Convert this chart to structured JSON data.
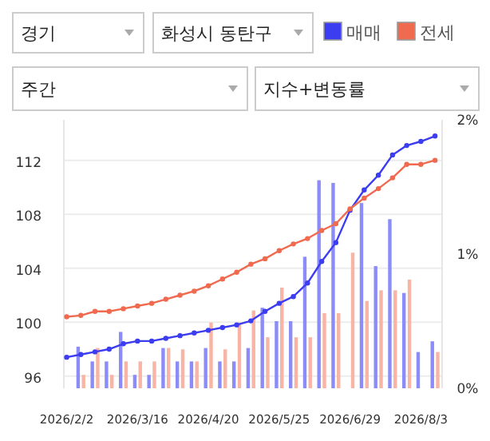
{
  "chart_data": {
    "type": "line",
    "annotations": [
      "경기",
      "화성시 동탄구",
      "주간",
      "지수+변동률"
    ],
    "categories": [
      "2026/2/2",
      null,
      null,
      null,
      null,
      "2026/3/16",
      null,
      null,
      null,
      null,
      "2026/4/20",
      null,
      null,
      null,
      null,
      "2026/5/25",
      null,
      null,
      null,
      null,
      "2026/6/29",
      null,
      null,
      null,
      null,
      "2026/8/3",
      null
    ],
    "series": [
      {
        "name": "매매",
        "color": "#3c3cf0",
        "values": [
          97.4,
          97.6,
          97.8,
          98.0,
          98.4,
          98.6,
          98.6,
          98.8,
          99.0,
          99.2,
          99.4,
          99.6,
          99.8,
          100.1,
          100.8,
          101.4,
          101.9,
          102.9,
          104.5,
          105.9,
          108.3,
          109.8,
          110.9,
          112.4,
          113.1,
          113.4,
          113.8
        ]
      },
      {
        "name": "전세",
        "color": "#f06a50",
        "values": [
          100.4,
          100.5,
          100.8,
          100.8,
          101.0,
          101.2,
          101.4,
          101.7,
          102.0,
          102.3,
          102.7,
          103.2,
          103.7,
          104.3,
          104.7,
          105.3,
          105.8,
          106.2,
          106.8,
          107.3,
          108.4,
          109.2,
          109.9,
          110.7,
          111.7,
          111.7,
          112.0
        ]
      },
      {
        "type": "bar",
        "axis": "y2",
        "color": "#8c8cf8",
        "values": [
          null,
          0.31,
          0.2,
          0.2,
          0.42,
          0.1,
          0.1,
          0.3,
          0.2,
          0.2,
          0.3,
          0.2,
          0.2,
          0.3,
          0.6,
          0.5,
          0.5,
          0.98,
          1.55,
          1.53,
          null,
          1.38,
          0.91,
          1.26,
          0.71,
          0.27,
          0.35
        ]
      },
      {
        "type": "bar",
        "axis": "y2",
        "color": "#f8b4a4",
        "values": [
          null,
          0.1,
          0.3,
          0.1,
          0.2,
          0.2,
          0.2,
          0.3,
          0.29,
          0.2,
          0.49,
          0.29,
          0.49,
          0.58,
          0.38,
          0.75,
          0.38,
          0.38,
          0.56,
          0.56,
          1.01,
          0.65,
          0.73,
          0.73,
          0.81,
          null,
          0.27
        ]
      }
    ],
    "ylim": [
      95.1,
      115
    ],
    "yticks": [
      96,
      100,
      104,
      108,
      112
    ],
    "y2lim": [
      0,
      2
    ],
    "y2ticks": [
      {
        "value": 0,
        "label": "0%"
      },
      {
        "value": 1,
        "label": "1%"
      },
      {
        "value": 2,
        "label": "2%"
      }
    ],
    "grid": "y",
    "legend": "top right",
    "marker": "circle",
    "line_style": "solid"
  }
}
